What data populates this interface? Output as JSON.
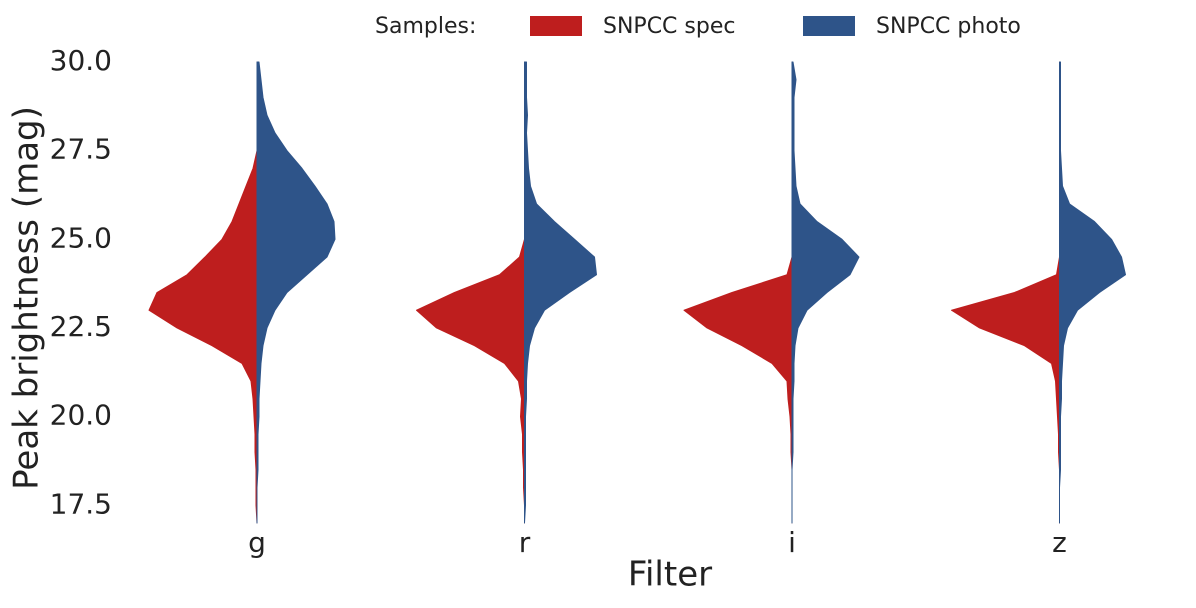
{
  "chart_data": {
    "type": "split-violin",
    "legend_title": "Samples:",
    "xlabel": "Filter",
    "ylabel": "Peak brightness (mag)",
    "categories": [
      "g",
      "r",
      "i",
      "z"
    ],
    "ylim": [
      17.0,
      30.0
    ],
    "yticks": [
      17.5,
      {
        "value": 20,
        "label": "20.0"
      },
      22.5,
      {
        "value": 25,
        "label": "25.0"
      },
      27.5,
      {
        "value": 30,
        "label": "30.0"
      }
    ],
    "grid": false,
    "legend_position": "top",
    "y": [
      17.0,
      17.5,
      18.0,
      18.5,
      19.0,
      19.5,
      20.0,
      20.5,
      21.0,
      21.5,
      22.0,
      22.5,
      23.0,
      23.5,
      24.0,
      24.5,
      25.0,
      25.5,
      26.0,
      26.5,
      27.0,
      27.5,
      28.0,
      28.5,
      29.0,
      29.5,
      30.0
    ],
    "series": [
      {
        "name": "SNPCC spec",
        "color": "#be1e1e",
        "side": "left",
        "values": [
          [
            0,
            1,
            1,
            1,
            2,
            2,
            3,
            4,
            6,
            15,
            45,
            80,
            108,
            100,
            70,
            52,
            35,
            25,
            18,
            11,
            4,
            0,
            0,
            0,
            0,
            0,
            0
          ],
          [
            0,
            0,
            1,
            1,
            2,
            2,
            4,
            3,
            6,
            20,
            50,
            88,
            108,
            70,
            25,
            5,
            0,
            0,
            0,
            0,
            0,
            0,
            0,
            0,
            0,
            0,
            0
          ],
          [
            0,
            0,
            0,
            0,
            1,
            1,
            2,
            4,
            5,
            20,
            50,
            85,
            108,
            60,
            5,
            0,
            0,
            0,
            0,
            0,
            0,
            0,
            0,
            0,
            0,
            0,
            0
          ],
          [
            0,
            0,
            0,
            0,
            1,
            1,
            2,
            3,
            4,
            8,
            35,
            80,
            108,
            45,
            3,
            0,
            0,
            0,
            0,
            0,
            0,
            0,
            0,
            0,
            0,
            0,
            0
          ]
        ]
      },
      {
        "name": "SNPCC photo",
        "color": "#2e5489",
        "side": "right",
        "values": [
          [
            0,
            0,
            0,
            1,
            1,
            1,
            2,
            2,
            3,
            4,
            6,
            10,
            18,
            30,
            50,
            70,
            78,
            77,
            70,
            58,
            45,
            30,
            18,
            10,
            6,
            4,
            2
          ],
          [
            0,
            1,
            1,
            1,
            1,
            1,
            1,
            2,
            2,
            3,
            5,
            10,
            20,
            45,
            72,
            70,
            50,
            30,
            12,
            6,
            4,
            3,
            2,
            3,
            2,
            2,
            2
          ],
          [
            0,
            0,
            0,
            0,
            1,
            1,
            1,
            1,
            2,
            2,
            3,
            6,
            15,
            35,
            58,
            67,
            50,
            25,
            8,
            4,
            3,
            2,
            2,
            2,
            2,
            4,
            1
          ],
          [
            0,
            0,
            0,
            1,
            1,
            1,
            1,
            2,
            2,
            3,
            4,
            8,
            18,
            40,
            66,
            62,
            52,
            35,
            10,
            3,
            2,
            1,
            1,
            1,
            1,
            1,
            1
          ]
        ]
      }
    ]
  }
}
